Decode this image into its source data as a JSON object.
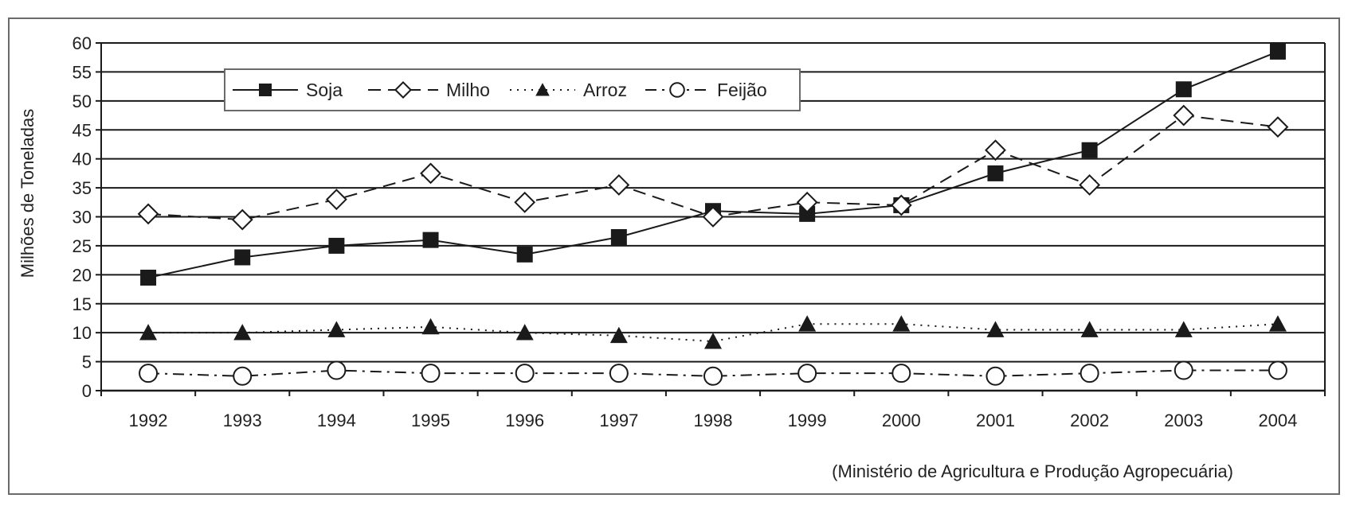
{
  "chart_data": {
    "type": "line",
    "title": "",
    "xlabel": "",
    "ylabel": "Milhões de Toneladas",
    "ylim": [
      0,
      60
    ],
    "yticks": [
      0,
      5,
      10,
      15,
      20,
      25,
      30,
      35,
      40,
      45,
      50,
      55,
      60
    ],
    "categories": [
      "1992",
      "1993",
      "1994",
      "1995",
      "1996",
      "1997",
      "1998",
      "1999",
      "2000",
      "2001",
      "2002",
      "2003",
      "2004"
    ],
    "grid": "horizontal",
    "legend_position": "top-left",
    "series": [
      {
        "name": "Soja",
        "marker": "filled-square",
        "line": "solid",
        "values": [
          19.5,
          23,
          25,
          26,
          23.5,
          26.5,
          31,
          30.5,
          32,
          37.5,
          41.5,
          52,
          58.5
        ]
      },
      {
        "name": "Milho",
        "marker": "hollow-diamond",
        "line": "dashed",
        "values": [
          30.5,
          29.5,
          33,
          37.5,
          32.5,
          35.5,
          30,
          32.5,
          32,
          41.5,
          35.5,
          47.5,
          45.5
        ]
      },
      {
        "name": "Arroz",
        "marker": "filled-triangle",
        "line": "dotted",
        "values": [
          10,
          10,
          10.5,
          11,
          10,
          9.5,
          8.5,
          11.5,
          11.5,
          10.5,
          10.5,
          10.5,
          11.5
        ]
      },
      {
        "name": "Feijão",
        "marker": "hollow-circle",
        "line": "dash-dot",
        "values": [
          3,
          2.5,
          3.5,
          3,
          3,
          3,
          2.5,
          3,
          3,
          2.5,
          3,
          3.5,
          3.5
        ]
      }
    ],
    "source_note": "(Ministério de Agricultura e Produção Agropecuária)"
  }
}
